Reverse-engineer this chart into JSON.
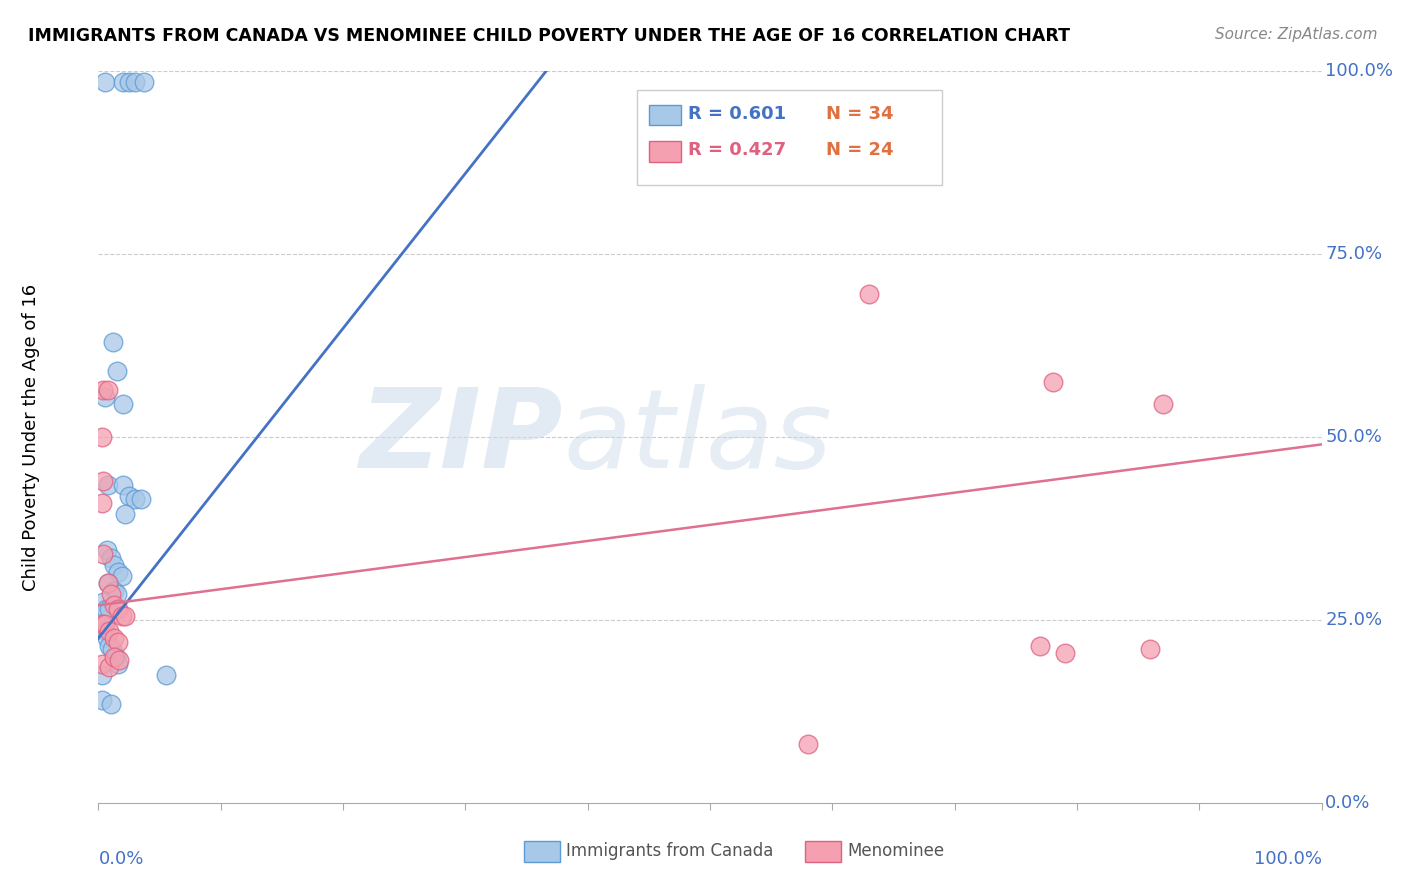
{
  "title": "IMMIGRANTS FROM CANADA VS MENOMINEE CHILD POVERTY UNDER THE AGE OF 16 CORRELATION CHART",
  "source": "Source: ZipAtlas.com",
  "ylabel": "Child Poverty Under the Age of 16",
  "watermark_zip": "ZIP",
  "watermark_atlas": "atlas",
  "blue_color": "#A8C8E8",
  "pink_color": "#F4A0B0",
  "blue_edge_color": "#5B9BD5",
  "pink_edge_color": "#E06080",
  "blue_line_color": "#4472C4",
  "pink_line_color": "#E07090",
  "blue_scatter": [
    [
      0.005,
      0.985
    ],
    [
      0.02,
      0.985
    ],
    [
      0.025,
      0.985
    ],
    [
      0.03,
      0.985
    ],
    [
      0.037,
      0.985
    ],
    [
      0.012,
      0.63
    ],
    [
      0.015,
      0.59
    ],
    [
      0.005,
      0.555
    ],
    [
      0.02,
      0.545
    ],
    [
      0.008,
      0.435
    ],
    [
      0.02,
      0.435
    ],
    [
      0.025,
      0.42
    ],
    [
      0.03,
      0.415
    ],
    [
      0.035,
      0.415
    ],
    [
      0.022,
      0.395
    ],
    [
      0.007,
      0.345
    ],
    [
      0.01,
      0.335
    ],
    [
      0.013,
      0.325
    ],
    [
      0.016,
      0.315
    ],
    [
      0.019,
      0.31
    ],
    [
      0.008,
      0.3
    ],
    [
      0.013,
      0.29
    ],
    [
      0.015,
      0.285
    ],
    [
      0.004,
      0.275
    ],
    [
      0.006,
      0.265
    ],
    [
      0.009,
      0.265
    ],
    [
      0.003,
      0.245
    ],
    [
      0.005,
      0.235
    ],
    [
      0.007,
      0.225
    ],
    [
      0.009,
      0.215
    ],
    [
      0.011,
      0.21
    ],
    [
      0.014,
      0.2
    ],
    [
      0.016,
      0.19
    ],
    [
      0.003,
      0.175
    ],
    [
      0.055,
      0.175
    ],
    [
      0.003,
      0.14
    ],
    [
      0.01,
      0.135
    ]
  ],
  "pink_scatter": [
    [
      0.004,
      0.565
    ],
    [
      0.008,
      0.565
    ],
    [
      0.003,
      0.5
    ],
    [
      0.004,
      0.44
    ],
    [
      0.003,
      0.41
    ],
    [
      0.004,
      0.34
    ],
    [
      0.008,
      0.3
    ],
    [
      0.01,
      0.285
    ],
    [
      0.013,
      0.27
    ],
    [
      0.016,
      0.265
    ],
    [
      0.019,
      0.255
    ],
    [
      0.022,
      0.255
    ],
    [
      0.003,
      0.245
    ],
    [
      0.005,
      0.245
    ],
    [
      0.009,
      0.235
    ],
    [
      0.013,
      0.225
    ],
    [
      0.016,
      0.22
    ],
    [
      0.003,
      0.19
    ],
    [
      0.009,
      0.185
    ],
    [
      0.013,
      0.2
    ],
    [
      0.017,
      0.195
    ],
    [
      0.58,
      0.08
    ],
    [
      0.63,
      0.695
    ],
    [
      0.78,
      0.575
    ],
    [
      0.87,
      0.545
    ],
    [
      0.77,
      0.215
    ],
    [
      0.79,
      0.205
    ],
    [
      0.86,
      0.21
    ]
  ],
  "xlim": [
    0.0,
    1.0
  ],
  "ylim": [
    0.0,
    1.0
  ],
  "blue_line_x": [
    0.0,
    0.38
  ],
  "blue_line_y": [
    0.225,
    1.03
  ],
  "pink_line_x": [
    0.0,
    1.0
  ],
  "pink_line_y": [
    0.27,
    0.49
  ],
  "yticks": [
    0.0,
    0.25,
    0.5,
    0.75,
    1.0
  ],
  "ytick_labels": [
    "0.0%",
    "25.0%",
    "50.0%",
    "75.0%",
    "100.0%"
  ],
  "xticks": [
    0.0,
    0.1,
    0.2,
    0.3,
    0.4,
    0.5,
    0.6,
    0.7,
    0.8,
    0.9,
    1.0
  ]
}
